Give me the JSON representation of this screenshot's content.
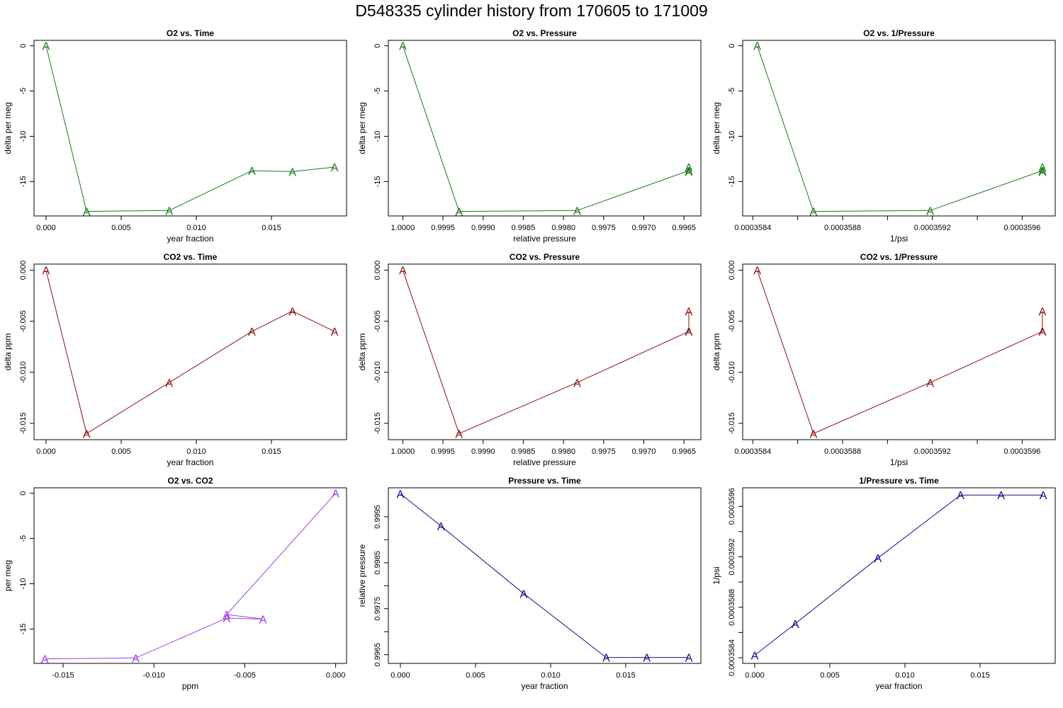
{
  "figure": {
    "title": "D548335   cylinder history from  170605  to  171009"
  },
  "chart_data": [
    {
      "type": "line",
      "title": "O2 vs. Time",
      "xlabel": "year fraction",
      "ylabel": "delta per meg",
      "x": [
        0.0,
        0.0027,
        0.0082,
        0.0137,
        0.0164,
        0.0192
      ],
      "y": [
        0,
        -18.3,
        -18.2,
        -13.8,
        -13.9,
        -13.4
      ],
      "xlim": [
        -0.0008,
        0.02
      ],
      "ylim": [
        -18.8,
        0.6
      ],
      "xticks": [
        0,
        0.005,
        0.01,
        0.015
      ],
      "xtick_labels": [
        "0.000",
        "0.005",
        "0.010",
        "0.015"
      ],
      "yticks": [
        0,
        -5,
        -10,
        -15
      ],
      "ytick_labels": [
        "0",
        "-5",
        "-10",
        "-15"
      ],
      "marker": "A",
      "color": "#1a7a1a",
      "xreverse": false
    },
    {
      "type": "line",
      "title": "O2 vs. Pressure",
      "xlabel": "relative pressure",
      "ylabel": "delta per meg",
      "x": [
        1.0,
        0.9993,
        0.99783,
        0.99644,
        0.99644,
        0.99644
      ],
      "y": [
        0,
        -18.3,
        -18.2,
        -13.8,
        -13.9,
        -13.4
      ],
      "xlim": [
        1.00018,
        0.99629
      ],
      "ylim": [
        -18.8,
        0.6
      ],
      "xticks": [
        1.0,
        0.9995,
        0.999,
        0.9985,
        0.998,
        0.9975,
        0.997,
        0.9965
      ],
      "xtick_labels": [
        "1.0000",
        "0.9995",
        "0.9990",
        "0.9985",
        "0.9980",
        "0.9975",
        "0.9970",
        "0.9965"
      ],
      "yticks": [
        0,
        -5,
        -10,
        -15
      ],
      "ytick_labels": [
        "0",
        "-5",
        "-10",
        "-15"
      ],
      "marker": "A",
      "color": "#1a7a1a",
      "xreverse": true
    },
    {
      "type": "line",
      "title": "O2 vs. 1/Pressure",
      "xlabel": "1/psi",
      "ylabel": "delta per meg",
      "x": [
        0.00035842,
        0.00035867,
        0.00035919,
        0.00035969,
        0.00035969,
        0.00035969
      ],
      "y": [
        0,
        -18.3,
        -18.2,
        -13.8,
        -13.9,
        -13.4
      ],
      "xlim": [
        0.000358355,
        0.000359747
      ],
      "ylim": [
        -18.8,
        0.6
      ],
      "xticks": [
        0.0003584,
        0.0003586,
        0.0003588,
        0.000359,
        0.0003592,
        0.0003594,
        0.0003596
      ],
      "xtick_labels": [
        "0.0003584",
        "",
        "0.0003588",
        "",
        "0.0003592",
        "",
        "0.0003596"
      ],
      "yticks": [
        0,
        -5,
        -10,
        -15
      ],
      "ytick_labels": [
        "0",
        "-5",
        "-10",
        "-15"
      ],
      "marker": "A",
      "color": "#1a7a1a",
      "xreverse": false
    },
    {
      "type": "line",
      "title": "CO2 vs. Time",
      "xlabel": "year fraction",
      "ylabel": "delta ppm",
      "x": [
        0.0,
        0.0027,
        0.0082,
        0.0137,
        0.0164,
        0.0192
      ],
      "y": [
        0,
        -0.016,
        -0.011,
        -0.006,
        -0.004,
        -0.006
      ],
      "xlim": [
        -0.0008,
        0.02
      ],
      "ylim": [
        -0.0166,
        0.0006
      ],
      "xticks": [
        0,
        0.005,
        0.01,
        0.015
      ],
      "xtick_labels": [
        "0.000",
        "0.005",
        "0.010",
        "0.015"
      ],
      "yticks": [
        0,
        -0.005,
        -0.01,
        -0.015
      ],
      "ytick_labels": [
        "0.000",
        "-0.005",
        "-0.010",
        "-0.015"
      ],
      "marker": "A",
      "color": "#8b1010",
      "xreverse": false
    },
    {
      "type": "line",
      "title": "CO2 vs. Pressure",
      "xlabel": "relative pressure",
      "ylabel": "delta ppm",
      "x": [
        1.0,
        0.9993,
        0.99783,
        0.99644,
        0.99644,
        0.99644
      ],
      "y": [
        0,
        -0.016,
        -0.011,
        -0.006,
        -0.004,
        -0.006
      ],
      "xlim": [
        1.00018,
        0.99629
      ],
      "ylim": [
        -0.0166,
        0.0006
      ],
      "xticks": [
        1.0,
        0.9995,
        0.999,
        0.9985,
        0.998,
        0.9975,
        0.997,
        0.9965
      ],
      "xtick_labels": [
        "1.0000",
        "0.9995",
        "0.9990",
        "0.9985",
        "0.9980",
        "0.9975",
        "0.9970",
        "0.9965"
      ],
      "yticks": [
        0,
        -0.005,
        -0.01,
        -0.015
      ],
      "ytick_labels": [
        "0.000",
        "-0.005",
        "-0.010",
        "-0.015"
      ],
      "marker": "A",
      "color": "#8b1010",
      "xreverse": true
    },
    {
      "type": "line",
      "title": "CO2 vs. 1/Pressure",
      "xlabel": "1/psi",
      "ylabel": "delta ppm",
      "x": [
        0.00035842,
        0.00035867,
        0.00035919,
        0.00035969,
        0.00035969,
        0.00035969
      ],
      "y": [
        0,
        -0.016,
        -0.011,
        -0.006,
        -0.004,
        -0.006
      ],
      "xlim": [
        0.000358355,
        0.000359747
      ],
      "ylim": [
        -0.0166,
        0.0006
      ],
      "xticks": [
        0.0003584,
        0.0003586,
        0.0003588,
        0.000359,
        0.0003592,
        0.0003594,
        0.0003596
      ],
      "xtick_labels": [
        "0.0003584",
        "",
        "0.0003588",
        "",
        "0.0003592",
        "",
        "0.0003596"
      ],
      "yticks": [
        0,
        -0.005,
        -0.01,
        -0.015
      ],
      "ytick_labels": [
        "0.000",
        "-0.005",
        "-0.010",
        "-0.015"
      ],
      "marker": "A",
      "color": "#8b1010",
      "xreverse": false
    },
    {
      "type": "line",
      "title": "O2 vs. CO2",
      "xlabel": "ppm",
      "ylabel": "per meg",
      "x": [
        -0.016,
        -0.011,
        -0.006,
        -0.004,
        -0.006,
        0.0
      ],
      "y": [
        -18.3,
        -18.2,
        -13.8,
        -13.9,
        -13.4,
        0
      ],
      "xlim": [
        -0.0166,
        0.0006
      ],
      "ylim": [
        -18.8,
        0.6
      ],
      "xticks": [
        -0.015,
        -0.01,
        -0.005,
        0
      ],
      "xtick_labels": [
        "-0.015",
        "-0.010",
        "-0.005",
        "0.000"
      ],
      "yticks": [
        0,
        -5,
        -10,
        -15
      ],
      "ytick_labels": [
        "0",
        "-5",
        "-10",
        "-15"
      ],
      "marker": "A",
      "color": "#a040e0",
      "xreverse": false
    },
    {
      "type": "line",
      "title": "Pressure vs. Time",
      "xlabel": "year fraction",
      "ylabel": "relative pressure",
      "x": [
        0.0,
        0.0027,
        0.0082,
        0.0137,
        0.0164,
        0.0192
      ],
      "y": [
        1.0,
        0.9993,
        0.99783,
        0.99644,
        0.99644,
        0.99644
      ],
      "xlim": [
        -0.0008,
        0.02
      ],
      "ylim": [
        0.99631,
        1.00013
      ],
      "xticks": [
        0,
        0.005,
        0.01,
        0.015
      ],
      "xtick_labels": [
        "0.000",
        "0.005",
        "0.010",
        "0.015"
      ],
      "yticks": [
        0.9965,
        0.997,
        0.9975,
        0.998,
        0.9985,
        0.999,
        0.9995
      ],
      "ytick_labels": [
        "0.9965",
        "",
        "0.9975",
        "",
        "0.9985",
        "",
        "0.9995"
      ],
      "marker": "A",
      "color": "#10108b",
      "xreverse": false
    },
    {
      "type": "line",
      "title": "1/Pressure vs. Time",
      "xlabel": "year fraction",
      "ylabel": "1/psi",
      "x": [
        0.0,
        0.0027,
        0.0082,
        0.0137,
        0.0164,
        0.0192
      ],
      "y": [
        0.00035842,
        0.00035867,
        0.00035919,
        0.00035969,
        0.00035969,
        0.00035969
      ],
      "xlim": [
        -0.0008,
        0.02
      ],
      "ylim": [
        0.000358355,
        0.000359747
      ],
      "xticks": [
        0,
        0.005,
        0.01,
        0.015
      ],
      "xtick_labels": [
        "0.000",
        "0.005",
        "0.010",
        "0.015"
      ],
      "yticks": [
        0.0003584,
        0.0003586,
        0.0003588,
        0.000359,
        0.0003592,
        0.0003594,
        0.0003596
      ],
      "ytick_labels": [
        "0.0003584",
        "",
        "0.0003588",
        "",
        "0.0003592",
        "",
        "0.0003596"
      ],
      "marker": "A",
      "color": "#10108b",
      "xreverse": false
    }
  ]
}
